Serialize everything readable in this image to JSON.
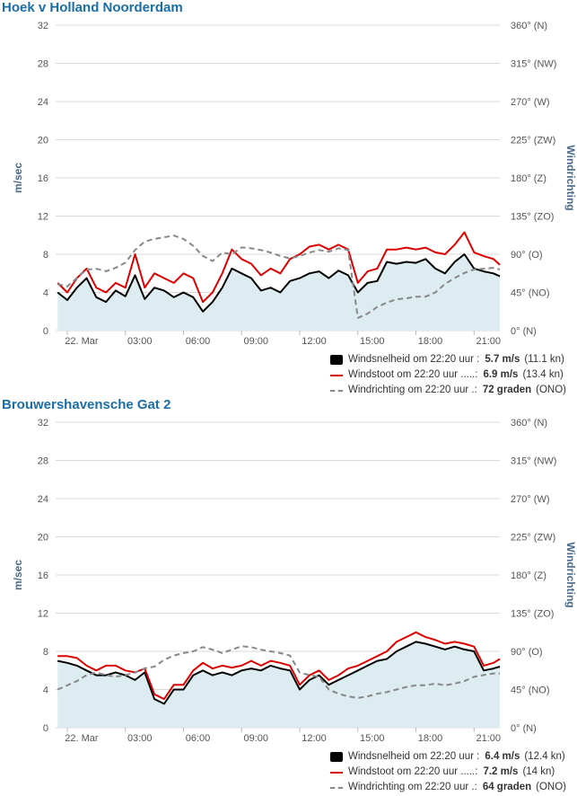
{
  "colors": {
    "title": "#1a6ea8",
    "gust": "#dd0000",
    "speed": "#000000",
    "direction": "#888888",
    "area_fill": "#dcecf0",
    "grid": "#d9d9d9",
    "axis_label": "#4a6a8a"
  },
  "chart_data": [
    {
      "type": "line",
      "title": "Hoek v Holland Noorderdam",
      "ylabel": "m/sec",
      "y2label": "Windrichting",
      "ylim": [
        0,
        32
      ],
      "y_ticks": [
        "0",
        "4",
        "8",
        "12",
        "16",
        "20",
        "24",
        "28",
        "32"
      ],
      "y2lim": [
        0,
        360
      ],
      "y2_ticks": [
        "0° (N)",
        "45° (NO)",
        "90° (O)",
        "135° (ZO)",
        "180° (Z)",
        "225° (ZW)",
        "270° (W)",
        "315° (NW)",
        "360° (N)"
      ],
      "x_ticks": [
        "22. Mar",
        "03:00",
        "06:00",
        "09:00",
        "12:00",
        "15:00",
        "18:00",
        "21:00"
      ],
      "x_tick_hours": [
        0,
        3,
        6,
        9,
        12,
        15,
        18,
        21
      ],
      "xlim_hours": [
        -0.6,
        22.33
      ],
      "grid": true,
      "series": [
        {
          "name": "Windsnelheid om 22:20 uur :",
          "kind": "area",
          "axis": "left",
          "x_hours": [
            -0.5,
            0,
            0.5,
            1,
            1.5,
            2,
            2.5,
            3,
            3.5,
            4,
            4.5,
            5,
            5.5,
            6,
            6.5,
            7,
            7.5,
            8,
            8.5,
            9,
            9.5,
            10,
            10.5,
            11,
            11.5,
            12,
            12.5,
            13,
            13.5,
            14,
            14.5,
            15,
            15.5,
            16,
            16.5,
            17,
            17.5,
            18,
            18.5,
            19,
            19.5,
            20,
            20.5,
            21,
            21.5,
            22,
            22.33
          ],
          "values": [
            4.0,
            3.2,
            4.5,
            5.5,
            3.5,
            3.0,
            4.2,
            3.6,
            5.8,
            3.3,
            4.5,
            4.2,
            3.5,
            4.0,
            3.5,
            2.0,
            3.0,
            4.5,
            6.5,
            6.0,
            5.5,
            4.2,
            4.5,
            4.0,
            5.2,
            5.5,
            6.0,
            6.2,
            5.5,
            6.3,
            5.8,
            4.0,
            5.0,
            5.2,
            7.2,
            7.0,
            7.2,
            7.1,
            7.5,
            6.5,
            6.0,
            7.2,
            8.0,
            6.5,
            6.2,
            6.0,
            5.7
          ]
        },
        {
          "name": "Windstoot om 22:20 uur .....:",
          "kind": "line",
          "axis": "left",
          "x_hours": [
            -0.5,
            0,
            0.5,
            1,
            1.5,
            2,
            2.5,
            3,
            3.5,
            4,
            4.5,
            5,
            5.5,
            6,
            6.5,
            7,
            7.5,
            8,
            8.5,
            9,
            9.5,
            10,
            10.5,
            11,
            11.5,
            12,
            12.5,
            13,
            13.5,
            14,
            14.5,
            15,
            15.5,
            16,
            16.5,
            17,
            17.5,
            18,
            18.5,
            19,
            19.5,
            20,
            20.5,
            21,
            21.5,
            22,
            22.33
          ],
          "values": [
            5.0,
            4.0,
            5.5,
            6.5,
            4.5,
            4.0,
            5.0,
            4.5,
            8.0,
            4.5,
            6.0,
            5.5,
            5.0,
            6.0,
            5.5,
            3.0,
            4.0,
            6.0,
            8.5,
            7.5,
            7.0,
            5.8,
            6.5,
            6.0,
            7.5,
            8.0,
            8.8,
            9.0,
            8.5,
            9.0,
            8.5,
            5.0,
            6.2,
            6.5,
            8.5,
            8.5,
            8.7,
            8.5,
            8.7,
            8.2,
            8.0,
            9.0,
            10.3,
            8.2,
            7.8,
            7.5,
            6.9
          ]
        },
        {
          "name": "Windrichting om 22:20 uur .:",
          "kind": "dashed",
          "axis": "right",
          "x_hours": [
            -0.5,
            0,
            0.5,
            1,
            1.5,
            2,
            2.5,
            3,
            3.5,
            4,
            4.5,
            5,
            5.5,
            6,
            6.5,
            7,
            7.5,
            8,
            8.5,
            9,
            9.5,
            10,
            10.5,
            11,
            11.5,
            12,
            12.5,
            13,
            13.5,
            14,
            14.5,
            15,
            15.5,
            16,
            16.5,
            17,
            17.5,
            18,
            18.5,
            19,
            19.5,
            20,
            20.5,
            21,
            21.5,
            22,
            22.33
          ],
          "values": [
            55,
            52,
            62,
            72,
            73,
            70,
            74,
            80,
            95,
            105,
            108,
            110,
            112,
            108,
            100,
            88,
            82,
            92,
            90,
            98,
            97,
            95,
            92,
            88,
            85,
            88,
            92,
            95,
            93,
            97,
            95,
            15,
            20,
            28,
            33,
            37,
            38,
            40,
            40,
            45,
            55,
            62,
            68,
            72,
            73,
            74,
            72
          ]
        }
      ],
      "legend": [
        {
          "label": "Windsnelheid om 22:20 uur :",
          "value": "5.7 m/s",
          "extra": "(11.1 kn)"
        },
        {
          "label": "Windstoot om 22:20 uur .....:",
          "value": "6.9 m/s",
          "extra": "(13.4 kn)"
        },
        {
          "label": "Windrichting om 22:20 uur .:",
          "value": "72 graden",
          "extra": "(ONO)"
        }
      ]
    },
    {
      "type": "line",
      "title": "Brouwershavensche Gat 2",
      "ylabel": "m/sec",
      "y2label": "Windrichting",
      "ylim": [
        0,
        32
      ],
      "y_ticks": [
        "0",
        "4",
        "8",
        "12",
        "16",
        "20",
        "24",
        "28",
        "32"
      ],
      "y2lim": [
        0,
        360
      ],
      "y2_ticks": [
        "0° (N)",
        "45° (NO)",
        "90° (O)",
        "135° (ZO)",
        "180° (Z)",
        "225° (ZW)",
        "270° (W)",
        "315° (NW)",
        "360° (N)"
      ],
      "x_ticks": [
        "22. Mar",
        "03:00",
        "06:00",
        "09:00",
        "12:00",
        "15:00",
        "18:00",
        "21:00"
      ],
      "x_tick_hours": [
        0,
        3,
        6,
        9,
        12,
        15,
        18,
        21
      ],
      "xlim_hours": [
        -0.6,
        22.33
      ],
      "grid": true,
      "series": [
        {
          "name": "Windsnelheid om 22:20 uur :",
          "kind": "area",
          "axis": "left",
          "x_hours": [
            -0.5,
            0,
            0.5,
            1,
            1.5,
            2,
            2.5,
            3,
            3.5,
            4,
            4.5,
            5,
            5.5,
            6,
            6.5,
            7,
            7.5,
            8,
            8.5,
            9,
            9.5,
            10,
            10.5,
            11,
            11.5,
            12,
            12.5,
            13,
            13.5,
            14,
            14.5,
            15,
            15.5,
            16,
            16.5,
            17,
            17.5,
            18,
            18.5,
            19,
            19.5,
            20,
            20.5,
            21,
            21.5,
            22,
            22.33
          ],
          "values": [
            7.0,
            6.8,
            6.5,
            6.0,
            5.5,
            5.5,
            5.8,
            5.5,
            5.0,
            5.8,
            3.0,
            2.5,
            4.0,
            4.0,
            5.5,
            6.0,
            5.5,
            5.8,
            5.5,
            6.0,
            6.2,
            6.0,
            6.5,
            6.2,
            6.0,
            4.0,
            5.0,
            5.5,
            4.5,
            5.0,
            5.5,
            6.0,
            6.5,
            7.0,
            7.2,
            8.0,
            8.5,
            9.0,
            8.8,
            8.5,
            8.2,
            8.5,
            8.2,
            8.0,
            6.0,
            6.2,
            6.4
          ]
        },
        {
          "name": "Windstoot om 22:20 uur .....:",
          "kind": "line",
          "axis": "left",
          "x_hours": [
            -0.5,
            0,
            0.5,
            1,
            1.5,
            2,
            2.5,
            3,
            3.5,
            4,
            4.5,
            5,
            5.5,
            6,
            6.5,
            7,
            7.5,
            8,
            8.5,
            9,
            9.5,
            10,
            10.5,
            11,
            11.5,
            12,
            12.5,
            13,
            13.5,
            14,
            14.5,
            15,
            15.5,
            16,
            16.5,
            17,
            17.5,
            18,
            18.5,
            19,
            19.5,
            20,
            20.5,
            21,
            21.5,
            22,
            22.33
          ],
          "values": [
            7.5,
            7.5,
            7.3,
            6.5,
            6.0,
            6.5,
            6.5,
            6.0,
            5.8,
            6.2,
            3.5,
            3.0,
            4.5,
            4.5,
            6.0,
            6.8,
            6.2,
            6.5,
            6.3,
            6.5,
            7.0,
            6.5,
            7.0,
            6.8,
            6.5,
            4.5,
            5.5,
            6.0,
            5.0,
            5.5,
            6.2,
            6.5,
            7.0,
            7.5,
            8.0,
            9.0,
            9.5,
            10.0,
            9.5,
            9.2,
            8.8,
            9.0,
            8.8,
            8.5,
            6.5,
            6.8,
            7.2
          ]
        },
        {
          "name": "Windrichting om 22:20 uur .:",
          "kind": "dashed",
          "axis": "right",
          "x_hours": [
            -0.5,
            0,
            0.5,
            1,
            1.5,
            2,
            2.5,
            3,
            3.5,
            4,
            4.5,
            5,
            5.5,
            6,
            6.5,
            7,
            7.5,
            8,
            8.5,
            9,
            9.5,
            10,
            10.5,
            11,
            11.5,
            12,
            12.5,
            13,
            13.5,
            14,
            14.5,
            15,
            15.5,
            16,
            16.5,
            17,
            17.5,
            18,
            18.5,
            19,
            19.5,
            20,
            20.5,
            21,
            21.5,
            22,
            22.33
          ],
          "values": [
            45,
            50,
            55,
            62,
            65,
            62,
            60,
            62,
            65,
            70,
            72,
            80,
            85,
            88,
            90,
            95,
            92,
            88,
            92,
            96,
            95,
            92,
            90,
            88,
            85,
            65,
            62,
            60,
            45,
            40,
            37,
            35,
            37,
            40,
            42,
            45,
            48,
            50,
            50,
            52,
            50,
            52,
            55,
            60,
            62,
            64,
            64
          ]
        }
      ],
      "legend": [
        {
          "label": "Windsnelheid om 22:20 uur :",
          "value": "6.4 m/s",
          "extra": "(12.4 kn)"
        },
        {
          "label": "Windstoot om 22:20 uur .....:",
          "value": "7.2 m/s",
          "extra": "(14 kn)"
        },
        {
          "label": "Windrichting om 22:20 uur .:",
          "value": "64 graden",
          "extra": "(ONO)"
        }
      ]
    }
  ]
}
